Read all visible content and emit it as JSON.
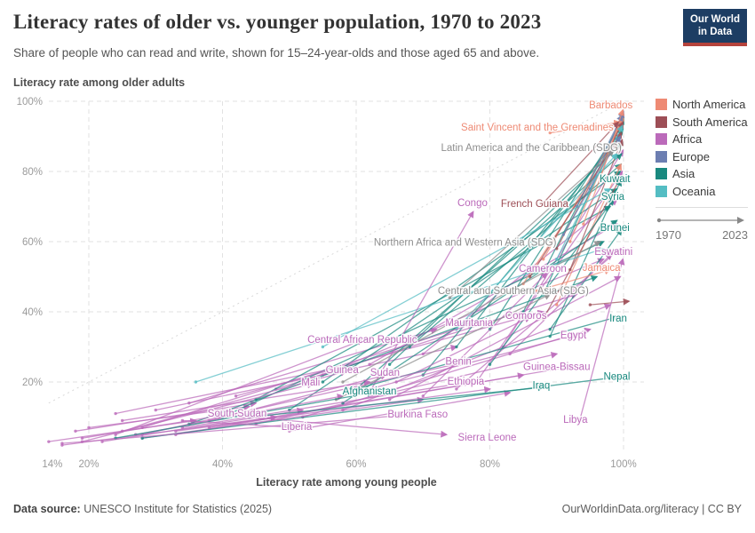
{
  "header": {
    "title": "Literacy rates of older vs. younger population, 1970 to 2023",
    "subtitle": "Share of people who can read and write, shown for 15–24-year-olds and those aged 65 and above."
  },
  "logo": {
    "line1": "Our World",
    "line2": "in Data",
    "bg_color": "#1d3d63",
    "bar_color": "#b5433c"
  },
  "axes": {
    "y_title": "Literacy rate among older adults",
    "x_title": "Literacy rate among young people"
  },
  "legend": {
    "regions": [
      {
        "id": "north_america",
        "label": "North America",
        "color": "#EE8A74"
      },
      {
        "id": "south_america",
        "label": "South America",
        "color": "#9D4E56"
      },
      {
        "id": "africa",
        "label": "Africa",
        "color": "#BB6ABA"
      },
      {
        "id": "europe",
        "label": "Europe",
        "color": "#6C7EB1"
      },
      {
        "id": "asia",
        "label": "Asia",
        "color": "#19897F"
      },
      {
        "id": "oceania",
        "label": "Oceania",
        "color": "#54BDC3"
      }
    ],
    "sdg_color": "#8E8E8E",
    "time_start": "1970",
    "time_end": "2023"
  },
  "footer": {
    "source_label": "Data source:",
    "source_text": " UNESCO Institute for Statistics (2025)",
    "credit": "OurWorldinData.org/literacy | CC BY"
  },
  "chart_data": {
    "type": "scatter",
    "description": "Connected scatter; each arrow runs from a country's 1970 position to its 2023 position. x = literacy rate among young people (15-24), y = literacy rate among older adults (65+), both in percent.",
    "xlim": [
      14,
      102
    ],
    "ylim": [
      0,
      100
    ],
    "grid": true,
    "diagonal_reference": true,
    "x_ticks": [
      {
        "value": 14,
        "label": "14%"
      },
      {
        "value": 20,
        "label": "20%"
      },
      {
        "value": 40,
        "label": "40%"
      },
      {
        "value": 60,
        "label": "60%"
      },
      {
        "value": 80,
        "label": "80%"
      },
      {
        "value": 100,
        "label": "100%"
      }
    ],
    "y_ticks": [
      {
        "value": 20,
        "label": "20%"
      },
      {
        "value": 40,
        "label": "40%"
      },
      {
        "value": 60,
        "label": "60%"
      },
      {
        "value": 80,
        "label": "80%"
      },
      {
        "value": 100,
        "label": "100%"
      }
    ],
    "countries": [
      {
        "name": "Barbados",
        "region": "north_america",
        "from": [
          96.5,
          78
        ],
        "to": [
          99.9,
          97.5
        ],
        "label": [
          98.1,
          99.0
        ]
      },
      {
        "name": "Saint Vincent and the Grenadines",
        "region": "north_america",
        "from": [
          89,
          91
        ],
        "to": [
          99.4,
          94
        ],
        "label": [
          87.1,
          92.7
        ]
      },
      {
        "name": "Latin America and the Caribbean (SDG)",
        "region": "sdg",
        "from": [
          74,
          44
        ],
        "to": [
          98.5,
          86
        ],
        "label": [
          86.2,
          86.8
        ]
      },
      {
        "name": "Kuwait",
        "region": "asia",
        "from": [
          89,
          33
        ],
        "to": [
          99.6,
          77.5
        ],
        "label": [
          98.7,
          78.0
        ]
      },
      {
        "name": "Syria",
        "region": "asia",
        "from": [
          80,
          25
        ],
        "to": [
          98.5,
          72
        ],
        "label": [
          98.4,
          72.9
        ]
      },
      {
        "name": "Congo",
        "region": "africa",
        "from": [
          62,
          17
        ],
        "to": [
          77.5,
          68.5
        ],
        "label": [
          77.4,
          71.1
        ]
      },
      {
        "name": "French Guiana",
        "region": "south_america",
        "from": [
          88,
          71
        ],
        "to": [
          99.2,
          94
        ],
        "label": [
          86.7,
          70.9
        ]
      },
      {
        "name": "Brunei",
        "region": "asia",
        "from": [
          89,
          35
        ],
        "to": [
          99.7,
          63.5
        ],
        "label": [
          98.7,
          64.1
        ]
      },
      {
        "name": "Northern Africa and Western Asia (SDG)",
        "region": "sdg",
        "from": [
          58,
          20
        ],
        "to": [
          96.5,
          60
        ],
        "label": [
          76.3,
          59.9
        ]
      },
      {
        "name": "Eswatini",
        "region": "africa",
        "from": [
          83,
          28
        ],
        "to": [
          98.2,
          56.5
        ],
        "label": [
          98.5,
          57.2
        ]
      },
      {
        "name": "Jamaica",
        "region": "north_america",
        "from": [
          87,
          46
        ],
        "to": [
          98,
          52
        ],
        "label": [
          96.7,
          52.7
        ]
      },
      {
        "name": "Cameroon",
        "region": "africa",
        "from": [
          70,
          16
        ],
        "to": [
          88.5,
          51
        ],
        "label": [
          87.9,
          52.4
        ]
      },
      {
        "name": "Central and Southern Asia (SDG)",
        "region": "sdg",
        "from": [
          57,
          15
        ],
        "to": [
          89,
          45
        ],
        "label": [
          83.5,
          46.1
        ]
      },
      {
        "name": "Comoros",
        "region": "africa",
        "from": [
          66,
          20
        ],
        "to": [
          86,
          38.5
        ],
        "label": [
          85.4,
          39.0
        ]
      },
      {
        "name": "Iran",
        "region": "asia",
        "from": [
          60,
          18
        ],
        "to": [
          99,
          38.5
        ],
        "label": [
          99.2,
          38.2
        ]
      },
      {
        "name": "Mauritania",
        "region": "africa",
        "from": [
          28,
          7
        ],
        "to": [
          77.5,
          36.5
        ],
        "label": [
          76.9,
          37.0
        ]
      },
      {
        "name": "Egypt",
        "region": "africa",
        "from": [
          60,
          17
        ],
        "to": [
          93,
          33.5
        ],
        "label": [
          92.5,
          33.4
        ]
      },
      {
        "name": "Central African Republic",
        "region": "africa",
        "from": [
          24,
          5
        ],
        "to": [
          61,
          32
        ],
        "label": [
          60.9,
          32.2
        ]
      },
      {
        "name": "Benin",
        "region": "africa",
        "from": [
          28,
          5
        ],
        "to": [
          77,
          26
        ],
        "label": [
          75.3,
          25.9
        ]
      },
      {
        "name": "Guinea-Bissau",
        "region": "africa",
        "from": [
          33,
          5
        ],
        "to": [
          92.5,
          24.5
        ],
        "label": [
          90.0,
          24.4
        ]
      },
      {
        "name": "Guinea",
        "region": "africa",
        "from": [
          25,
          6
        ],
        "to": [
          58.5,
          23
        ],
        "label": [
          57.9,
          23.5
        ]
      },
      {
        "name": "Sudan",
        "region": "africa",
        "from": [
          38,
          9
        ],
        "to": [
          64.5,
          22
        ],
        "label": [
          64.3,
          22.8
        ]
      },
      {
        "name": "Nepal",
        "region": "asia",
        "from": [
          28,
          4
        ],
        "to": [
          99.5,
          21.5
        ],
        "label": [
          99.0,
          21.6
        ]
      },
      {
        "name": "Mali",
        "region": "africa",
        "from": [
          19,
          3
        ],
        "to": [
          53.5,
          19.5
        ],
        "label": [
          53.2,
          20.0
        ]
      },
      {
        "name": "Ethiopia",
        "region": "africa",
        "from": [
          34,
          7
        ],
        "to": [
          77,
          20
        ],
        "label": [
          76.4,
          20.3
        ]
      },
      {
        "name": "Afghanistan",
        "region": "asia",
        "from": [
          24,
          4
        ],
        "to": [
          62.5,
          17
        ],
        "label": [
          62.0,
          17.5
        ]
      },
      {
        "name": "Iraq",
        "region": "asia",
        "from": [
          44,
          10
        ],
        "to": [
          88,
          18.5
        ],
        "label": [
          87.7,
          19.1
        ]
      },
      {
        "name": "South Sudan",
        "region": "africa",
        "from": [
          19,
          4
        ],
        "to": [
          40,
          10.5
        ],
        "label": [
          42.2,
          11.1
        ]
      },
      {
        "name": "Burkina Faso",
        "region": "africa",
        "from": [
          16,
          2.5
        ],
        "to": [
          67,
          10.5
        ],
        "label": [
          69.2,
          10.9
        ]
      },
      {
        "name": "Liberia",
        "region": "africa",
        "from": [
          34,
          9
        ],
        "to": [
          51,
          7
        ],
        "label": [
          51.1,
          7.3
        ]
      },
      {
        "name": "Libya",
        "region": "africa",
        "from": [
          93.5,
          9.5
        ],
        "to": [
          99.9,
          55
        ],
        "label": [
          92.8,
          9.4
        ]
      },
      {
        "name": "Sierra Leone",
        "region": "africa",
        "from": [
          44,
          10
        ],
        "to": [
          73.5,
          5
        ],
        "label": [
          79.6,
          4.3
        ]
      }
    ],
    "background_arrows": [
      {
        "region": "africa",
        "from": [
          16,
          2
        ],
        "to": [
          48,
          10
        ]
      },
      {
        "region": "africa",
        "from": [
          18,
          6
        ],
        "to": [
          45,
          14
        ]
      },
      {
        "region": "africa",
        "from": [
          22,
          3
        ],
        "to": [
          52,
          12
        ]
      },
      {
        "region": "africa",
        "from": [
          25,
          9
        ],
        "to": [
          62,
          20
        ]
      },
      {
        "region": "africa",
        "from": [
          28,
          4
        ],
        "to": [
          70,
          15
        ]
      },
      {
        "region": "africa",
        "from": [
          30,
          12
        ],
        "to": [
          75,
          30
        ]
      },
      {
        "region": "africa",
        "from": [
          33,
          6
        ],
        "to": [
          80,
          18
        ]
      },
      {
        "region": "africa",
        "from": [
          35,
          14
        ],
        "to": [
          72,
          35
        ]
      },
      {
        "region": "africa",
        "from": [
          38,
          7
        ],
        "to": [
          85,
          22
        ]
      },
      {
        "region": "africa",
        "from": [
          42,
          16
        ],
        "to": [
          88,
          40
        ]
      },
      {
        "region": "africa",
        "from": [
          45,
          8
        ],
        "to": [
          90,
          28
        ]
      },
      {
        "region": "africa",
        "from": [
          48,
          18
        ],
        "to": [
          93,
          45
        ]
      },
      {
        "region": "africa",
        "from": [
          52,
          10
        ],
        "to": [
          95,
          35
        ]
      },
      {
        "region": "africa",
        "from": [
          55,
          22
        ],
        "to": [
          97,
          55
        ]
      },
      {
        "region": "africa",
        "from": [
          58,
          12
        ],
        "to": [
          98,
          42
        ]
      },
      {
        "region": "africa",
        "from": [
          62,
          25
        ],
        "to": [
          99,
          65
        ]
      },
      {
        "region": "africa",
        "from": [
          65,
          15
        ],
        "to": [
          99.5,
          50
        ]
      },
      {
        "region": "africa",
        "from": [
          27,
          5
        ],
        "to": [
          58,
          16
        ]
      },
      {
        "region": "africa",
        "from": [
          70,
          28
        ],
        "to": [
          99,
          72
        ]
      },
      {
        "region": "africa",
        "from": [
          75,
          18
        ],
        "to": [
          99.5,
          58
        ]
      },
      {
        "region": "africa",
        "from": [
          78,
          20
        ],
        "to": [
          99.8,
          80
        ]
      },
      {
        "region": "africa",
        "from": [
          82,
          30
        ],
        "to": [
          99.9,
          86
        ]
      },
      {
        "region": "africa",
        "from": [
          20,
          7
        ],
        "to": [
          44,
          13
        ]
      },
      {
        "region": "africa",
        "from": [
          24,
          11
        ],
        "to": [
          57,
          24
        ]
      },
      {
        "region": "africa",
        "from": [
          14,
          3
        ],
        "to": [
          36,
          9
        ]
      },
      {
        "region": "africa",
        "from": [
          50,
          6
        ],
        "to": [
          83,
          17
        ]
      },
      {
        "region": "asia",
        "from": [
          40,
          10
        ],
        "to": [
          97,
          60
        ]
      },
      {
        "region": "asia",
        "from": [
          45,
          15
        ],
        "to": [
          98,
          70
        ]
      },
      {
        "region": "asia",
        "from": [
          50,
          12
        ],
        "to": [
          99,
          75
        ]
      },
      {
        "region": "asia",
        "from": [
          55,
          20
        ],
        "to": [
          99.5,
          80
        ]
      },
      {
        "region": "asia",
        "from": [
          60,
          18
        ],
        "to": [
          99.7,
          85
        ]
      },
      {
        "region": "asia",
        "from": [
          65,
          25
        ],
        "to": [
          99.8,
          88
        ]
      },
      {
        "region": "asia",
        "from": [
          70,
          22
        ],
        "to": [
          99.5,
          90
        ]
      },
      {
        "region": "asia",
        "from": [
          75,
          30
        ],
        "to": [
          99.9,
          92
        ]
      },
      {
        "region": "asia",
        "from": [
          80,
          35
        ],
        "to": [
          99.9,
          94
        ]
      },
      {
        "region": "asia",
        "from": [
          85,
          40
        ],
        "to": [
          100,
          96
        ]
      },
      {
        "region": "asia",
        "from": [
          35,
          8
        ],
        "to": [
          96,
          50
        ]
      },
      {
        "region": "asia",
        "from": [
          58,
          14
        ],
        "to": [
          99,
          66
        ]
      },
      {
        "region": "asia",
        "from": [
          68,
          30
        ],
        "to": [
          99.6,
          82
        ]
      },
      {
        "region": "asia",
        "from": [
          88,
          45
        ],
        "to": [
          100,
          95
        ]
      },
      {
        "region": "north_america",
        "from": [
          88,
          55
        ],
        "to": [
          99.5,
          93
        ]
      },
      {
        "region": "north_america",
        "from": [
          92,
          60
        ],
        "to": [
          99.8,
          95
        ]
      },
      {
        "region": "north_america",
        "from": [
          85,
          48
        ],
        "to": [
          99,
          88
        ]
      },
      {
        "region": "north_america",
        "from": [
          90,
          42
        ],
        "to": [
          99.6,
          82
        ]
      },
      {
        "region": "north_america",
        "from": [
          94,
          65
        ],
        "to": [
          99.9,
          96
        ]
      },
      {
        "region": "south_america",
        "from": [
          86,
          50
        ],
        "to": [
          99.7,
          91
        ]
      },
      {
        "region": "south_america",
        "from": [
          90,
          58
        ],
        "to": [
          99.9,
          94
        ]
      },
      {
        "region": "south_america",
        "from": [
          95,
          42
        ],
        "to": [
          100.8,
          43
        ]
      },
      {
        "region": "south_america",
        "from": [
          88,
          38
        ],
        "to": [
          99.5,
          78
        ]
      },
      {
        "region": "south_america",
        "from": [
          92,
          52
        ],
        "to": [
          99.8,
          89
        ]
      },
      {
        "region": "europe",
        "from": [
          93,
          70
        ],
        "to": [
          99.8,
          96
        ]
      },
      {
        "region": "europe",
        "from": [
          95,
          75
        ],
        "to": [
          100,
          97
        ]
      },
      {
        "region": "europe",
        "from": [
          91,
          62
        ],
        "to": [
          99.5,
          90
        ]
      },
      {
        "region": "oceania",
        "from": [
          36,
          20
        ],
        "to": [
          97,
          58
        ]
      },
      {
        "region": "oceania",
        "from": [
          55,
          30
        ],
        "to": [
          98,
          75
        ]
      },
      {
        "region": "oceania",
        "from": [
          75,
          35
        ],
        "to": [
          99,
          85
        ]
      },
      {
        "region": "oceania",
        "from": [
          90,
          55
        ],
        "to": [
          99.8,
          93
        ]
      }
    ]
  }
}
